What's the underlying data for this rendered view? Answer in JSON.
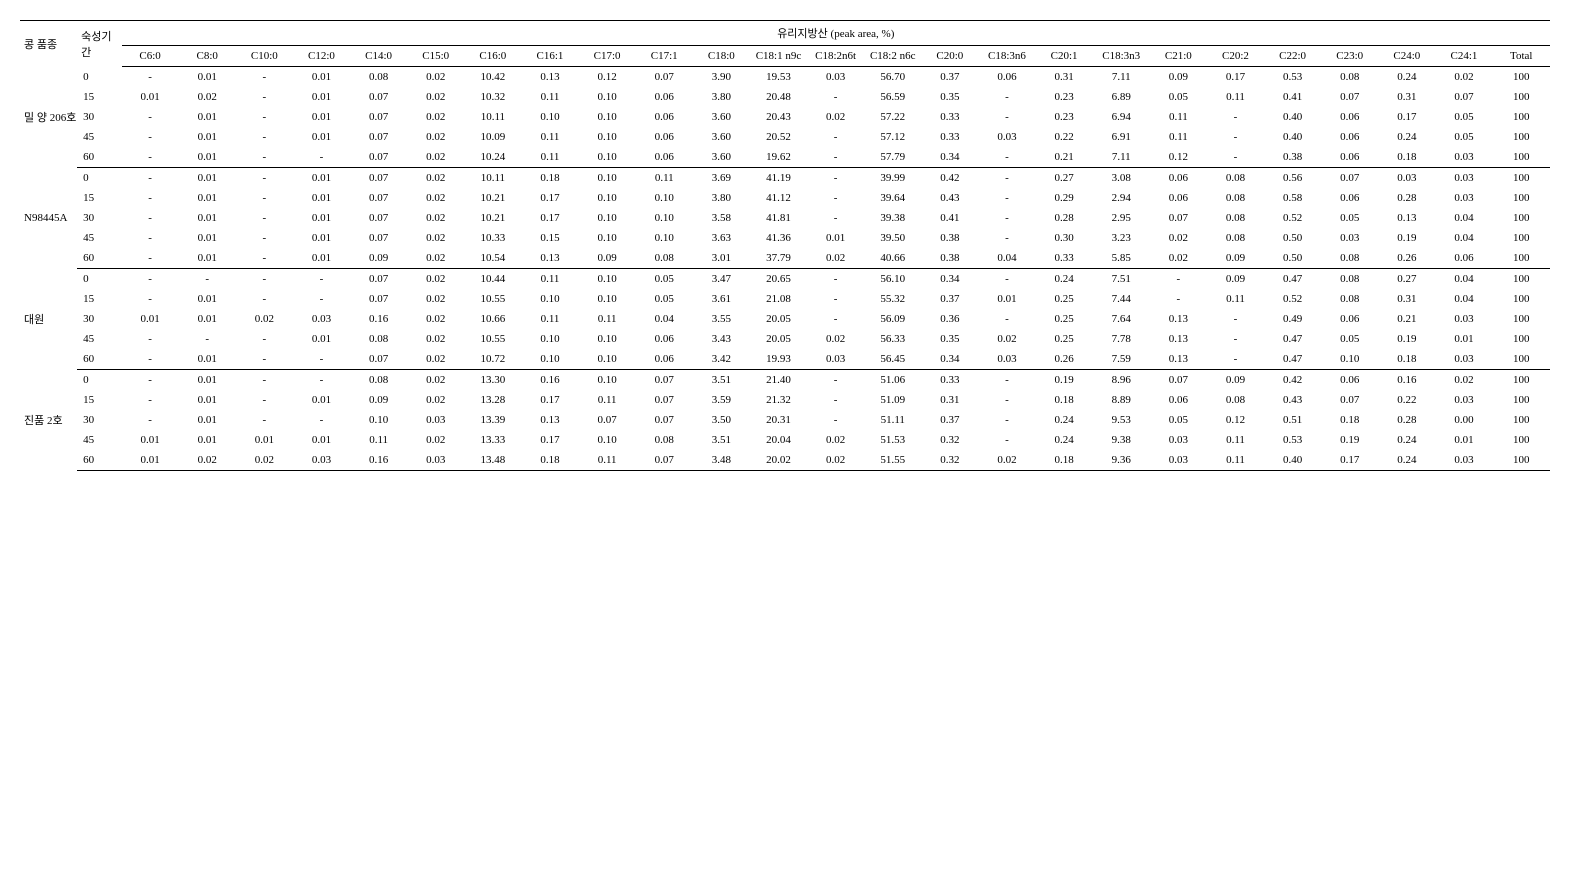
{
  "super_header": "유리지방산 (peak area, %)",
  "row_header_1": "콩 품종",
  "row_header_2": "숙성기간",
  "columns": [
    "C6:0",
    "C8:0",
    "C10:0",
    "C12:0",
    "C14:0",
    "C15:0",
    "C16:0",
    "C16:1",
    "C17:0",
    "C17:1",
    "C18:0",
    "C18:1 n9c",
    "C18:2n6t",
    "C18:2 n6c",
    "C20:0",
    "C18:3n6",
    "C20:1",
    "C18:3n3",
    "C21:0",
    "C20:2",
    "C22:0",
    "C23:0",
    "C24:0",
    "C24:1",
    "Total"
  ],
  "groups": [
    {
      "label": "밀 양 206호",
      "rows": [
        {
          "period": "0",
          "cells": [
            "-",
            "0.01",
            "-",
            "0.01",
            "0.08",
            "0.02",
            "10.42",
            "0.13",
            "0.12",
            "0.07",
            "3.90",
            "19.53",
            "0.03",
            "56.70",
            "0.37",
            "0.06",
            "0.31",
            "7.11",
            "0.09",
            "0.17",
            "0.53",
            "0.08",
            "0.24",
            "0.02",
            "100"
          ]
        },
        {
          "period": "15",
          "cells": [
            "0.01",
            "0.02",
            "-",
            "0.01",
            "0.07",
            "0.02",
            "10.32",
            "0.11",
            "0.10",
            "0.06",
            "3.80",
            "20.48",
            "-",
            "56.59",
            "0.35",
            "-",
            "0.23",
            "6.89",
            "0.05",
            "0.11",
            "0.41",
            "0.07",
            "0.31",
            "0.07",
            "100"
          ]
        },
        {
          "period": "30",
          "cells": [
            "-",
            "0.01",
            "-",
            "0.01",
            "0.07",
            "0.02",
            "10.11",
            "0.10",
            "0.10",
            "0.06",
            "3.60",
            "20.43",
            "0.02",
            "57.22",
            "0.33",
            "-",
            "0.23",
            "6.94",
            "0.11",
            "-",
            "0.40",
            "0.06",
            "0.17",
            "0.05",
            "100"
          ]
        },
        {
          "period": "45",
          "cells": [
            "-",
            "0.01",
            "-",
            "0.01",
            "0.07",
            "0.02",
            "10.09",
            "0.11",
            "0.10",
            "0.06",
            "3.60",
            "20.52",
            "-",
            "57.12",
            "0.33",
            "0.03",
            "0.22",
            "6.91",
            "0.11",
            "-",
            "0.40",
            "0.06",
            "0.24",
            "0.05",
            "100"
          ]
        },
        {
          "period": "60",
          "cells": [
            "-",
            "0.01",
            "-",
            "-",
            "0.07",
            "0.02",
            "10.24",
            "0.11",
            "0.10",
            "0.06",
            "3.60",
            "19.62",
            "-",
            "57.79",
            "0.34",
            "-",
            "0.21",
            "7.11",
            "0.12",
            "-",
            "0.38",
            "0.06",
            "0.18",
            "0.03",
            "100"
          ]
        }
      ]
    },
    {
      "label": "N98445A",
      "rows": [
        {
          "period": "0",
          "cells": [
            "-",
            "0.01",
            "-",
            "0.01",
            "0.07",
            "0.02",
            "10.11",
            "0.18",
            "0.10",
            "0.11",
            "3.69",
            "41.19",
            "-",
            "39.99",
            "0.42",
            "-",
            "0.27",
            "3.08",
            "0.06",
            "0.08",
            "0.56",
            "0.07",
            "0.03",
            "0.03",
            "100"
          ]
        },
        {
          "period": "15",
          "cells": [
            "-",
            "0.01",
            "-",
            "0.01",
            "0.07",
            "0.02",
            "10.21",
            "0.17",
            "0.10",
            "0.10",
            "3.80",
            "41.12",
            "-",
            "39.64",
            "0.43",
            "-",
            "0.29",
            "2.94",
            "0.06",
            "0.08",
            "0.58",
            "0.06",
            "0.28",
            "0.03",
            "100"
          ]
        },
        {
          "period": "30",
          "cells": [
            "-",
            "0.01",
            "-",
            "0.01",
            "0.07",
            "0.02",
            "10.21",
            "0.17",
            "0.10",
            "0.10",
            "3.58",
            "41.81",
            "-",
            "39.38",
            "0.41",
            "-",
            "0.28",
            "2.95",
            "0.07",
            "0.08",
            "0.52",
            "0.05",
            "0.13",
            "0.04",
            "100"
          ]
        },
        {
          "period": "45",
          "cells": [
            "-",
            "0.01",
            "-",
            "0.01",
            "0.07",
            "0.02",
            "10.33",
            "0.15",
            "0.10",
            "0.10",
            "3.63",
            "41.36",
            "0.01",
            "39.50",
            "0.38",
            "-",
            "0.30",
            "3.23",
            "0.02",
            "0.08",
            "0.50",
            "0.03",
            "0.19",
            "0.04",
            "100"
          ]
        },
        {
          "period": "60",
          "cells": [
            "-",
            "0.01",
            "-",
            "0.01",
            "0.09",
            "0.02",
            "10.54",
            "0.13",
            "0.09",
            "0.08",
            "3.01",
            "37.79",
            "0.02",
            "40.66",
            "0.38",
            "0.04",
            "0.33",
            "5.85",
            "0.02",
            "0.09",
            "0.50",
            "0.08",
            "0.26",
            "0.06",
            "100"
          ]
        }
      ]
    },
    {
      "label": "대원",
      "rows": [
        {
          "period": "0",
          "cells": [
            "-",
            "-",
            "-",
            "-",
            "0.07",
            "0.02",
            "10.44",
            "0.11",
            "0.10",
            "0.05",
            "3.47",
            "20.65",
            "-",
            "56.10",
            "0.34",
            "-",
            "0.24",
            "7.51",
            "-",
            "0.09",
            "0.47",
            "0.08",
            "0.27",
            "0.04",
            "100"
          ]
        },
        {
          "period": "15",
          "cells": [
            "-",
            "0.01",
            "-",
            "-",
            "0.07",
            "0.02",
            "10.55",
            "0.10",
            "0.10",
            "0.05",
            "3.61",
            "21.08",
            "-",
            "55.32",
            "0.37",
            "0.01",
            "0.25",
            "7.44",
            "-",
            "0.11",
            "0.52",
            "0.08",
            "0.31",
            "0.04",
            "100"
          ]
        },
        {
          "period": "30",
          "cells": [
            "0.01",
            "0.01",
            "0.02",
            "0.03",
            "0.16",
            "0.02",
            "10.66",
            "0.11",
            "0.11",
            "0.04",
            "3.55",
            "20.05",
            "-",
            "56.09",
            "0.36",
            "-",
            "0.25",
            "7.64",
            "0.13",
            "-",
            "0.49",
            "0.06",
            "0.21",
            "0.03",
            "100"
          ]
        },
        {
          "period": "45",
          "cells": [
            "-",
            "-",
            "-",
            "0.01",
            "0.08",
            "0.02",
            "10.55",
            "0.10",
            "0.10",
            "0.06",
            "3.43",
            "20.05",
            "0.02",
            "56.33",
            "0.35",
            "0.02",
            "0.25",
            "7.78",
            "0.13",
            "-",
            "0.47",
            "0.05",
            "0.19",
            "0.01",
            "100"
          ]
        },
        {
          "period": "60",
          "cells": [
            "-",
            "0.01",
            "-",
            "-",
            "0.07",
            "0.02",
            "10.72",
            "0.10",
            "0.10",
            "0.06",
            "3.42",
            "19.93",
            "0.03",
            "56.45",
            "0.34",
            "0.03",
            "0.26",
            "7.59",
            "0.13",
            "-",
            "0.47",
            "0.10",
            "0.18",
            "0.03",
            "100"
          ]
        }
      ]
    },
    {
      "label": "진품 2호",
      "rows": [
        {
          "period": "0",
          "cells": [
            "-",
            "0.01",
            "-",
            "-",
            "0.08",
            "0.02",
            "13.30",
            "0.16",
            "0.10",
            "0.07",
            "3.51",
            "21.40",
            "-",
            "51.06",
            "0.33",
            "-",
            "0.19",
            "8.96",
            "0.07",
            "0.09",
            "0.42",
            "0.06",
            "0.16",
            "0.02",
            "100"
          ]
        },
        {
          "period": "15",
          "cells": [
            "-",
            "0.01",
            "-",
            "0.01",
            "0.09",
            "0.02",
            "13.28",
            "0.17",
            "0.11",
            "0.07",
            "3.59",
            "21.32",
            "-",
            "51.09",
            "0.31",
            "-",
            "0.18",
            "8.89",
            "0.06",
            "0.08",
            "0.43",
            "0.07",
            "0.22",
            "0.03",
            "100"
          ]
        },
        {
          "period": "30",
          "cells": [
            "-",
            "0.01",
            "-",
            "-",
            "0.10",
            "0.03",
            "13.39",
            "0.13",
            "0.07",
            "0.07",
            "3.50",
            "20.31",
            "-",
            "51.11",
            "0.37",
            "-",
            "0.24",
            "9.53",
            "0.05",
            "0.12",
            "0.51",
            "0.18",
            "0.28",
            "0.00",
            "100"
          ]
        },
        {
          "period": "45",
          "cells": [
            "0.01",
            "0.01",
            "0.01",
            "0.01",
            "0.11",
            "0.02",
            "13.33",
            "0.17",
            "0.10",
            "0.08",
            "3.51",
            "20.04",
            "0.02",
            "51.53",
            "0.32",
            "-",
            "0.24",
            "9.38",
            "0.03",
            "0.11",
            "0.53",
            "0.19",
            "0.24",
            "0.01",
            "100"
          ]
        },
        {
          "period": "60",
          "cells": [
            "0.01",
            "0.02",
            "0.02",
            "0.03",
            "0.16",
            "0.03",
            "13.48",
            "0.18",
            "0.11",
            "0.07",
            "3.48",
            "20.02",
            "0.02",
            "51.55",
            "0.32",
            "0.02",
            "0.18",
            "9.36",
            "0.03",
            "0.11",
            "0.40",
            "0.17",
            "0.24",
            "0.03",
            "100"
          ]
        }
      ]
    }
  ],
  "style": {
    "font_family": "Times New Roman, serif",
    "font_size_pt": 11,
    "background_color": "#ffffff",
    "text_color": "#000000",
    "border_color": "#000000"
  }
}
